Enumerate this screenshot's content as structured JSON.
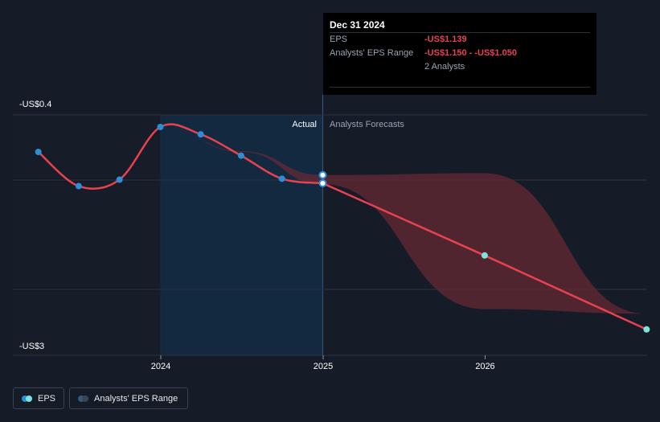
{
  "tooltip": {
    "date": "Dec 31 2024",
    "eps_label": "EPS",
    "eps_value": "-US$1.139",
    "range_label": "Analysts' EPS Range",
    "range_value": "-US$1.150 - -US$1.050",
    "analysts": "2 Analysts"
  },
  "labels": {
    "actual": "Actual",
    "forecast": "Analysts Forecasts"
  },
  "legend": {
    "eps": "EPS",
    "range": "Analysts' EPS Range"
  },
  "colors": {
    "background": "#151b27",
    "eps_line": "#e8414f",
    "eps_marker": "#2d8ed8",
    "forecast_marker": "#7ee3dc",
    "range_fill": "#6a2a34",
    "actual_band": "#122c45",
    "tooltip_bg": "#000000",
    "eps_value_text": "#e8414f"
  },
  "chart_data": {
    "type": "line",
    "title": "",
    "xlabel": "",
    "ylabel": "",
    "x_ticks": [
      "2024",
      "2025",
      "2026"
    ],
    "y_ticks": [
      "-US$0.4",
      "-US$3"
    ],
    "ylim": [
      -3.0,
      -0.4
    ],
    "xlim": [
      "2023-03-01",
      "2026-12-31"
    ],
    "grid": true,
    "legend_position": "bottom-left",
    "actual_until": "2024-12-31",
    "series": [
      {
        "name": "EPS",
        "points": [
          {
            "x": "2023-03-31",
            "y": -0.8
          },
          {
            "x": "2023-06-30",
            "y": -1.17
          },
          {
            "x": "2023-09-30",
            "y": -1.1
          },
          {
            "x": "2023-12-31",
            "y": -0.53
          },
          {
            "x": "2024-03-31",
            "y": -0.61
          },
          {
            "x": "2024-06-30",
            "y": -0.84
          },
          {
            "x": "2024-09-30",
            "y": -1.09
          },
          {
            "x": "2024-12-31",
            "y": -1.139
          }
        ]
      },
      {
        "name": "Analysts' EPS Range",
        "analysts_low_high": [
          {
            "x": "2024-01-15",
            "low": -0.57,
            "high": -0.57
          },
          {
            "x": "2024-06-30",
            "low": -0.8,
            "high": -0.79
          },
          {
            "x": "2024-12-31",
            "low": -1.15,
            "high": -1.05
          },
          {
            "x": "2025-12-31",
            "low": -2.5,
            "high": -1.03
          },
          {
            "x": "2026-12-31",
            "low": -2.55,
            "high": -2.55
          }
        ],
        "forecast": [
          {
            "x": "2024-12-31",
            "y": -1.139
          },
          {
            "x": "2025-12-31",
            "y": -1.92
          },
          {
            "x": "2026-12-31",
            "y": -2.72
          }
        ]
      }
    ]
  }
}
